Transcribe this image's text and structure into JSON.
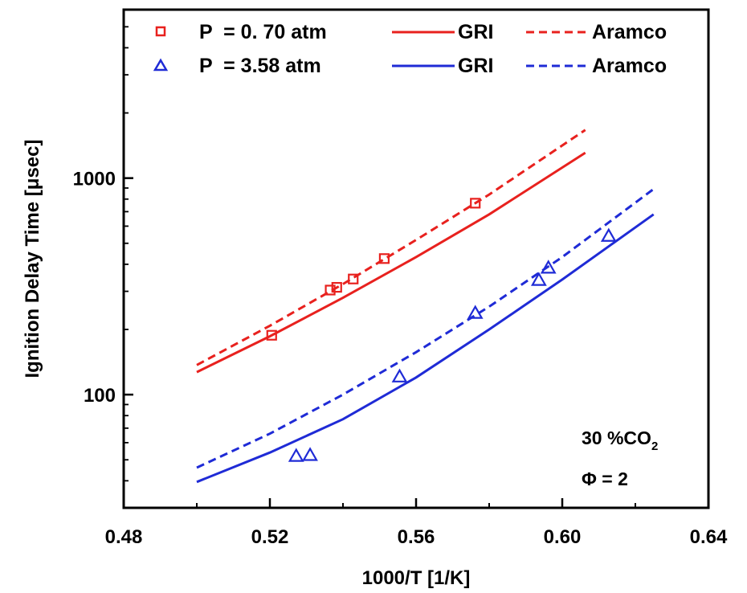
{
  "chart_data": {
    "type": "line",
    "xlabel": "1000/T [1/K]",
    "ylabel": "Ignition Delay Time [μsec]",
    "xlim": [
      0.48,
      0.64
    ],
    "ylim": [
      30,
      6000
    ],
    "yscale": "log",
    "grid": false,
    "legend_position": "top",
    "x_ticks": [
      0.48,
      0.52,
      0.56,
      0.6,
      0.64
    ],
    "x_tick_labels": [
      "0.48",
      "0.52",
      "0.56",
      "0.60",
      "0.64"
    ],
    "y_ticks": [
      100,
      1000
    ],
    "y_tick_labels": [
      "100",
      "1000"
    ],
    "annotations": {
      "co2_main": "30 %CO",
      "co2_sub": "2",
      "phi": "Φ = 2"
    },
    "legend": [
      {
        "label": "P  = 0. 70 atm",
        "style": "square",
        "color": "#e8211e"
      },
      {
        "label": "GRI",
        "style": "solid",
        "color": "#e8211e"
      },
      {
        "label": "Aramco",
        "style": "dashed",
        "color": "#e8211e"
      },
      {
        "label": "P  = 3.58 atm",
        "style": "triangle",
        "color": "#1f2bd6"
      },
      {
        "label": "GRI",
        "style": "solid",
        "color": "#1f2bd6"
      },
      {
        "label": "Aramco",
        "style": "dashed",
        "color": "#1f2bd6"
      }
    ],
    "series": [
      {
        "kind": "scatter",
        "marker": "square",
        "color": "#e8211e",
        "x": [
          0.5205,
          0.5365,
          0.5383,
          0.5428,
          0.5513,
          0.5762
        ],
        "y": [
          188,
          304,
          313,
          342,
          425,
          766
        ]
      },
      {
        "kind": "line",
        "dash": false,
        "color": "#e8211e",
        "x": [
          0.5,
          0.52,
          0.54,
          0.56,
          0.58,
          0.6063
        ],
        "y": [
          127,
          186,
          280,
          432,
          680,
          1310
        ]
      },
      {
        "kind": "line",
        "dash": true,
        "color": "#e8211e",
        "x": [
          0.5,
          0.52,
          0.54,
          0.56,
          0.58,
          0.6063
        ],
        "y": [
          137,
          208,
          324,
          518,
          840,
          1670
        ]
      },
      {
        "kind": "scatter",
        "marker": "triangle",
        "color": "#1f2bd6",
        "x": [
          0.5272,
          0.531,
          0.5555,
          0.5762,
          0.5936,
          0.5962,
          0.6127
        ],
        "y": [
          52,
          52.5,
          121,
          238,
          338,
          385,
          540
        ]
      },
      {
        "kind": "line",
        "dash": false,
        "color": "#1f2bd6",
        "x": [
          0.5,
          0.52,
          0.54,
          0.56,
          0.58,
          0.6,
          0.625
        ],
        "y": [
          39.5,
          54,
          77,
          120,
          200,
          340,
          680
        ]
      },
      {
        "kind": "line",
        "dash": true,
        "color": "#1f2bd6",
        "x": [
          0.5,
          0.52,
          0.54,
          0.56,
          0.58,
          0.6,
          0.625
        ],
        "y": [
          46,
          66,
          100,
          157,
          255,
          432,
          890
        ]
      }
    ]
  }
}
